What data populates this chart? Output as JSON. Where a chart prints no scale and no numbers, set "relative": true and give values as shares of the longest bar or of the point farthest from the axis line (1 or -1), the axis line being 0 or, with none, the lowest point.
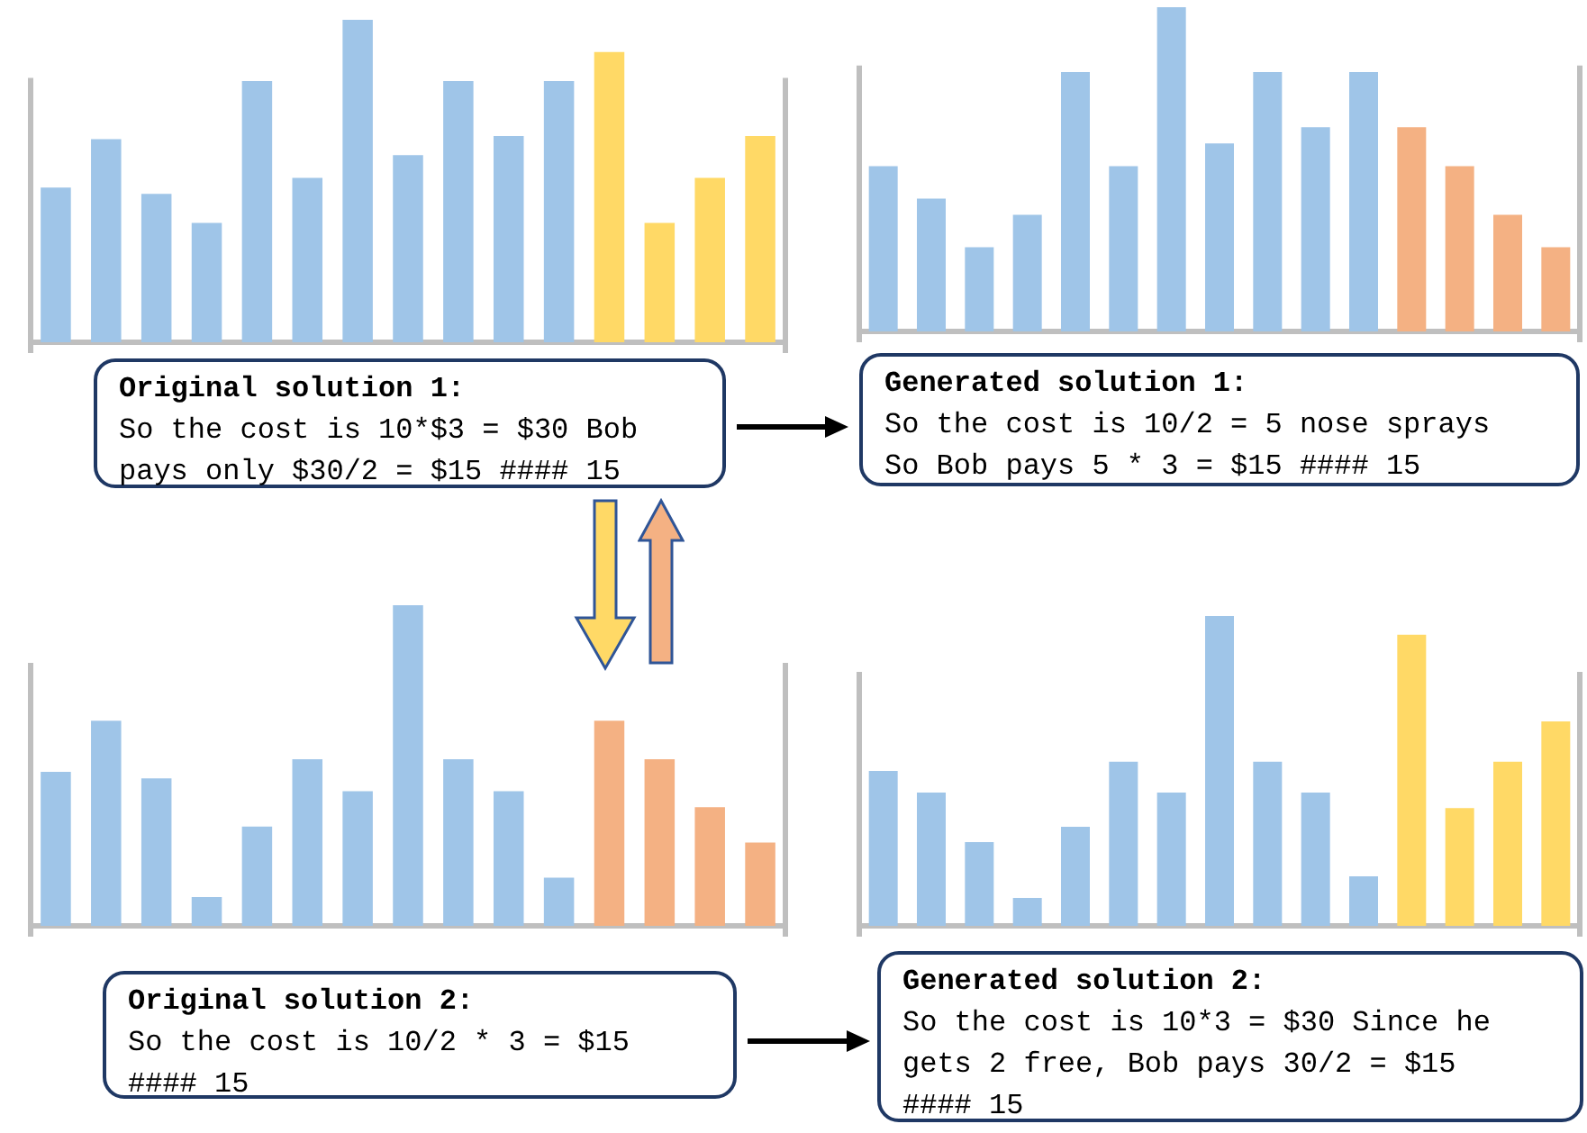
{
  "chart_data": [
    {
      "type": "bar",
      "relative": true,
      "categories": [
        null,
        null,
        null,
        null,
        null,
        null,
        null,
        null,
        null,
        null,
        null,
        null,
        null,
        null,
        null
      ],
      "values": [
        0.48,
        0.63,
        0.46,
        0.37,
        0.81,
        0.51,
        1,
        0.58,
        0.81,
        0.64,
        0.81,
        0.9,
        0.37,
        0.51,
        0.64
      ],
      "colors": [
        "#9fc5e8",
        "#9fc5e8",
        "#9fc5e8",
        "#9fc5e8",
        "#9fc5e8",
        "#9fc5e8",
        "#9fc5e8",
        "#9fc5e8",
        "#9fc5e8",
        "#9fc5e8",
        "#9fc5e8",
        "#ffd966",
        "#ffd966",
        "#ffd966",
        "#ffd966"
      ]
    },
    {
      "type": "bar",
      "relative": true,
      "categories": [
        null,
        null,
        null,
        null,
        null,
        null,
        null,
        null,
        null,
        null,
        null,
        null,
        null,
        null,
        null
      ],
      "values": [
        0.51,
        0.41,
        0.26,
        0.36,
        0.8,
        0.51,
        1,
        0.58,
        0.8,
        0.63,
        0.8,
        0.63,
        0.51,
        0.36,
        0.26
      ],
      "colors": [
        "#9fc5e8",
        "#9fc5e8",
        "#9fc5e8",
        "#9fc5e8",
        "#9fc5e8",
        "#9fc5e8",
        "#9fc5e8",
        "#9fc5e8",
        "#9fc5e8",
        "#9fc5e8",
        "#9fc5e8",
        "#f4b183",
        "#f4b183",
        "#f4b183",
        "#f4b183"
      ]
    },
    {
      "type": "other",
      "title": "Original solution 1:",
      "annotations": [
        "So the cost is 10*$3 = $30 Bob",
        "pays only $30/2 = $15 #### 15"
      ]
    },
    {
      "type": "other",
      "title": "Generated solution 1:",
      "annotations": [
        "So the cost is 10/2 = 5 nose sprays",
        "So Bob pays 5 * 3 = $15 #### 15"
      ]
    },
    {
      "type": "bar",
      "relative": true,
      "categories": [
        null,
        null,
        null,
        null,
        null,
        null,
        null,
        null,
        null,
        null,
        null,
        null,
        null,
        null,
        null
      ],
      "values": [
        0.48,
        0.64,
        0.46,
        0.09,
        0.31,
        0.52,
        0.42,
        1,
        0.52,
        0.42,
        0.15,
        0.64,
        0.52,
        0.37,
        0.26
      ],
      "colors": [
        "#9fc5e8",
        "#9fc5e8",
        "#9fc5e8",
        "#9fc5e8",
        "#9fc5e8",
        "#9fc5e8",
        "#9fc5e8",
        "#9fc5e8",
        "#9fc5e8",
        "#9fc5e8",
        "#9fc5e8",
        "#f4b183",
        "#f4b183",
        "#f4b183",
        "#f4b183"
      ]
    },
    {
      "type": "bar",
      "relative": true,
      "categories": [
        null,
        null,
        null,
        null,
        null,
        null,
        null,
        null,
        null,
        null,
        null,
        null,
        null,
        null,
        null
      ],
      "values": [
        0.5,
        0.43,
        0.27,
        0.09,
        0.32,
        0.53,
        0.43,
        1,
        0.53,
        0.43,
        0.16,
        0.94,
        0.38,
        0.53,
        0.66
      ],
      "colors": [
        "#9fc5e8",
        "#9fc5e8",
        "#9fc5e8",
        "#9fc5e8",
        "#9fc5e8",
        "#9fc5e8",
        "#9fc5e8",
        "#9fc5e8",
        "#9fc5e8",
        "#9fc5e8",
        "#9fc5e8",
        "#ffd966",
        "#ffd966",
        "#ffd966",
        "#ffd966"
      ]
    },
    {
      "type": "other",
      "title": "Original solution 2:",
      "annotations": [
        "So the cost is 10/2 * 3 = $15",
        "#### 15"
      ]
    },
    {
      "type": "other",
      "title": "Generated solution 2:",
      "annotations": [
        "So the cost is 10*3 = $30 Since he",
        "gets 2 free, Bob pays 30/2 = $15",
        "#### 15"
      ]
    }
  ]
}
